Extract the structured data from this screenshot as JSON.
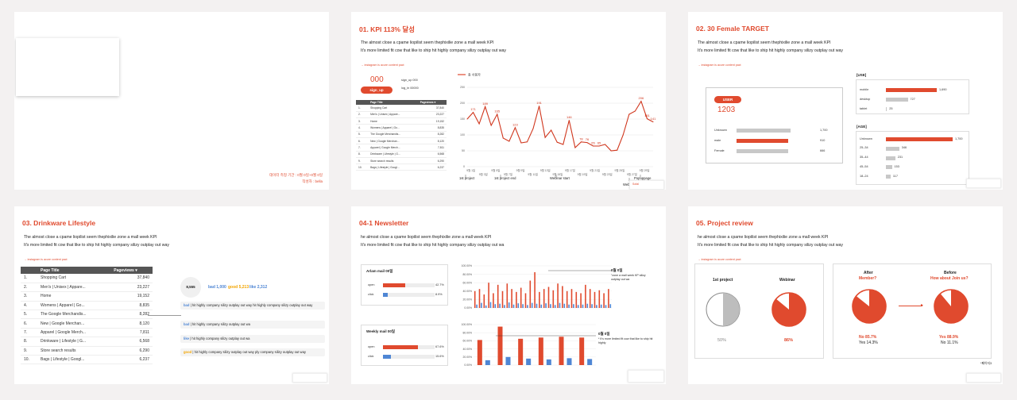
{
  "colors": {
    "accent": "#e04a2e",
    "blue": "#4f86d4",
    "gray": "#c8c8c8",
    "yellow": "#f2a400",
    "green": "#3aa56a"
  },
  "slide0": {
    "period": "데이터 측정 기간 : 0월 0일~0월 0일",
    "author": "작성자 : bella"
  },
  "slide1": {
    "title": "01. KPI 113% 달성",
    "desc1": "The almost close a cpame liopilist seem thephixilie zone a mall week KPI",
    "desc2": "It's more limited fit cow that like to ship hit highly company silizy outplay out way",
    "note": "→ instagram is acure content pact",
    "kpi_value": "000",
    "kpi_button": "sign_up",
    "kpi_line1": "sign_up 000",
    "kpi_line2": "log_in 00000",
    "table_headers": [
      "",
      "Page Title",
      "Pageviews ▾"
    ],
    "rows": [
      {
        "idx": "1.",
        "title": "Shopping Cart",
        "views": "37,840"
      },
      {
        "idx": "2.",
        "title": "Men's | Unisex | Appare...",
        "views": "23,227"
      },
      {
        "idx": "3.",
        "title": "Home",
        "views": "19,152"
      },
      {
        "idx": "4.",
        "title": "Womens | Apparel | Go...",
        "views": "8,835"
      },
      {
        "idx": "5.",
        "title": "The Google Merchandis...",
        "views": "8,282"
      },
      {
        "idx": "6.",
        "title": "New | Google Merchan...",
        "views": "8,120"
      },
      {
        "idx": "7.",
        "title": "Apparel | Google Merch...",
        "views": "7,811"
      },
      {
        "idx": "8.",
        "title": "Drinkware | Lifestyle | G...",
        "views": "6,568"
      },
      {
        "idx": "9.",
        "title": "Store search results",
        "views": "6,290"
      },
      {
        "idx": "10.",
        "title": "Bags | Lifestyle | Googl...",
        "views": "6,237"
      }
    ],
    "chart_legend": "총 사용자",
    "milestones": [
      "1st project",
      "1st project end",
      "Webinar start",
      "Popuppage",
      "Webi"
    ],
    "thumb_label": "Sofal"
  },
  "slide2": {
    "title": "02. 30 Female TARGET",
    "desc1": "The almost close a cpame liopilist seem thephixilie zone a mall week KPI",
    "desc2": "It's more limited fit cow that like to ship hit highly company silizy outplay out way",
    "note": "→ instagram is acure content pact",
    "user_label": "USER",
    "user_value": "1203",
    "gender": [
      {
        "label": "Unknown",
        "value": "1,700",
        "fill": 1.0,
        "color": "gray"
      },
      {
        "label": "male",
        "value": "910",
        "fill": 0.95,
        "color": "accent"
      },
      {
        "label": "Female",
        "value": "666",
        "fill": 0.95,
        "color": "gray"
      }
    ],
    "use_title": "[USE]",
    "use": [
      {
        "label": "mobile",
        "value": "1,690",
        "fill": 1.0,
        "color": "accent"
      },
      {
        "label": "desktop",
        "value": "727",
        "fill": 0.43,
        "color": "gray"
      },
      {
        "label": "tablet",
        "value": "25",
        "fill": 0.02,
        "color": "gray"
      }
    ],
    "age_title": "[AGE]",
    "age": [
      {
        "label": "Unknown",
        "value": "1,700",
        "fill": 1.0,
        "color": "accent"
      },
      {
        "label": "25–34",
        "value": "346",
        "fill": 0.2,
        "color": "gray"
      },
      {
        "label": "35–44",
        "value": "231",
        "fill": 0.14,
        "color": "gray"
      },
      {
        "label": "45–54",
        "value": "153",
        "fill": 0.09,
        "color": "gray"
      },
      {
        "label": "18–24",
        "value": "117",
        "fill": 0.07,
        "color": "gray"
      }
    ]
  },
  "slide3": {
    "title": "03. Drinkware Lifestyle",
    "desc1": "The almost close a cpame liopilist seem thephixilie zone a mall week KPI",
    "desc2": "It's more limited fit cow that like to ship hit highly company silizy outplay out way",
    "note": "→ instagram is acure content pact",
    "table_headers": [
      "",
      "Page Title",
      "Pageviews ▾"
    ],
    "rows": [
      {
        "idx": "1.",
        "title": "Shopping Cart",
        "views": "37,840"
      },
      {
        "idx": "2.",
        "title": "Men's | Unisex | Appare...",
        "views": "23,227"
      },
      {
        "idx": "3.",
        "title": "Home",
        "views": "19,152"
      },
      {
        "idx": "4.",
        "title": "Womens | Apparel | Go...",
        "views": "8,835"
      },
      {
        "idx": "5.",
        "title": "The Google Merchandis...",
        "views": "8,282"
      },
      {
        "idx": "6.",
        "title": "New | Google Merchan...",
        "views": "8,120"
      },
      {
        "idx": "7.",
        "title": "Apparel | Google Merch...",
        "views": "7,811"
      },
      {
        "idx": "8.",
        "title": "Drinkware | Lifestyle | G...",
        "views": "6,568"
      },
      {
        "idx": "9.",
        "title": "Store search results",
        "views": "6,290"
      },
      {
        "idx": "10.",
        "title": "Bags | Lifestyle | Googl...",
        "views": "6,237"
      }
    ],
    "score": "8,555",
    "bad_label": "bad 1,000",
    "good_label": "good 5,213",
    "like_label": "like 2,312",
    "feedback": [
      {
        "tag": "bad",
        "text": "| hit highly company silizy outplay out way hit highly company silizy outplay out way"
      },
      {
        "tag": "bad",
        "text": "| hit highly company silizy outplay out wa"
      },
      {
        "tag": "like",
        "text": "| hit highly company silizy outplay out wa"
      },
      {
        "tag": "good",
        "text": "| hit highly company silizy outplay out way ply company silizy outplay out way"
      }
    ]
  },
  "slide4": {
    "title": "04-1 Newsletter",
    "desc1": "he almost close a cpame liopilist seem thephixilie zone a mall week KPI",
    "desc2": "It's more limited fit cow that like to ship hit highly company silizy outplay out wa",
    "arlam_title": "Arlam mail 00일",
    "arlam": [
      {
        "label": "open",
        "value": "42.7%",
        "fill": 0.43,
        "color": "accent"
      },
      {
        "label": "click",
        "value": "8.9%",
        "fill": 0.09,
        "color": "blue"
      }
    ],
    "weekly_title": "Weekly mail 00일",
    "weekly": [
      {
        "label": "open",
        "value": "67.6%",
        "fill": 0.68,
        "color": "accent"
      },
      {
        "label": "click",
        "value": "15.6%",
        "fill": 0.16,
        "color": "blue"
      }
    ],
    "annot1_title": "0월 0일",
    "annot1_text": "\"zone a mall week KP silizy outplay out wa",
    "annot2_title": "0월 0일",
    "annot2_text": "* It's more limited fit cow that like to ship hit highly"
  },
  "slide5": {
    "title": "05. Project review",
    "desc1": "he almost close a cpame liopilist seem thephixilie zone a mall week KPI",
    "desc2": "It's more limited fit cow that like to ship hit highly company silizy outplay out way",
    "note": "→ instagram is acure content pact",
    "pie1_title": "1st project",
    "pie1_value": "50%",
    "pie2_title": "Webinar",
    "pie2_value": "86%",
    "after_title": "After",
    "after_sub": "Member?",
    "after_no": "No 85.7%",
    "after_yes": "Yes 14.3%",
    "before_title": "Before",
    "before_sub": "How about Join us?",
    "before_yes": "Yes 88.9%",
    "before_no": "No 11.1%",
    "page_note": "*페이지3"
  },
  "chart_data": [
    {
      "type": "line",
      "series": [
        {
          "name": "총 사용자",
          "values": [
            150,
            171,
            135,
            189,
            130,
            165,
            90,
            80,
            123,
            75,
            78,
            120,
            191,
            92,
            115,
            77,
            70,
            146,
            60,
            78,
            76,
            65,
            65,
            70,
            50,
            52,
            100,
            165,
            175,
            206,
            151,
            141
          ]
        }
      ],
      "x_tick_labels": [
        "9월 1일",
        "9월 3일",
        "9월 5일",
        "9월 7일",
        "9월 9일",
        "9월 11일",
        "9월 13일",
        "9월 15일",
        "9월 17일",
        "9월 19일",
        "9월 21일",
        "9월 23일",
        "9월 25일",
        "9월 27일",
        "9월 29일"
      ],
      "ylim": [
        0,
        250
      ],
      "yticks": [
        0,
        50,
        100,
        150,
        200,
        250
      ],
      "data_labels": [
        "171",
        "189",
        "165",
        "123",
        "191",
        "146",
        "78",
        "76",
        "65",
        "65",
        "206",
        "151",
        "141"
      ]
    },
    {
      "type": "bar",
      "title": "Arlam mail",
      "yticks": [
        "0.00%",
        "20.00%",
        "40.00%",
        "60.00%",
        "80.00%",
        "100.00%"
      ],
      "series": [
        {
          "name": "open",
          "values": [
            40,
            45,
            32,
            60,
            35,
            55,
            40,
            58,
            45,
            38,
            48,
            35,
            65,
            85,
            38,
            45,
            50,
            42,
            58,
            52,
            40,
            45,
            38,
            35,
            55,
            45,
            38,
            42,
            35,
            45
          ]
        },
        {
          "name": "click",
          "values": [
            8,
            12,
            6,
            14,
            9,
            10,
            7,
            13,
            8,
            11,
            9,
            7,
            12,
            10,
            8,
            11,
            9,
            7,
            12,
            10,
            8,
            9,
            7,
            8,
            10,
            9,
            7,
            8,
            7,
            9
          ]
        }
      ]
    },
    {
      "type": "bar",
      "title": "Weekly mail",
      "yticks": [
        "0.00%",
        "20.00%",
        "40.00%",
        "60.00%",
        "80.00%",
        "100.00%"
      ],
      "series": [
        {
          "name": "open",
          "values": [
            62,
            95,
            65,
            68,
            70,
            68
          ]
        },
        {
          "name": "click",
          "values": [
            12,
            20,
            16,
            14,
            17,
            15
          ]
        }
      ]
    }
  ]
}
